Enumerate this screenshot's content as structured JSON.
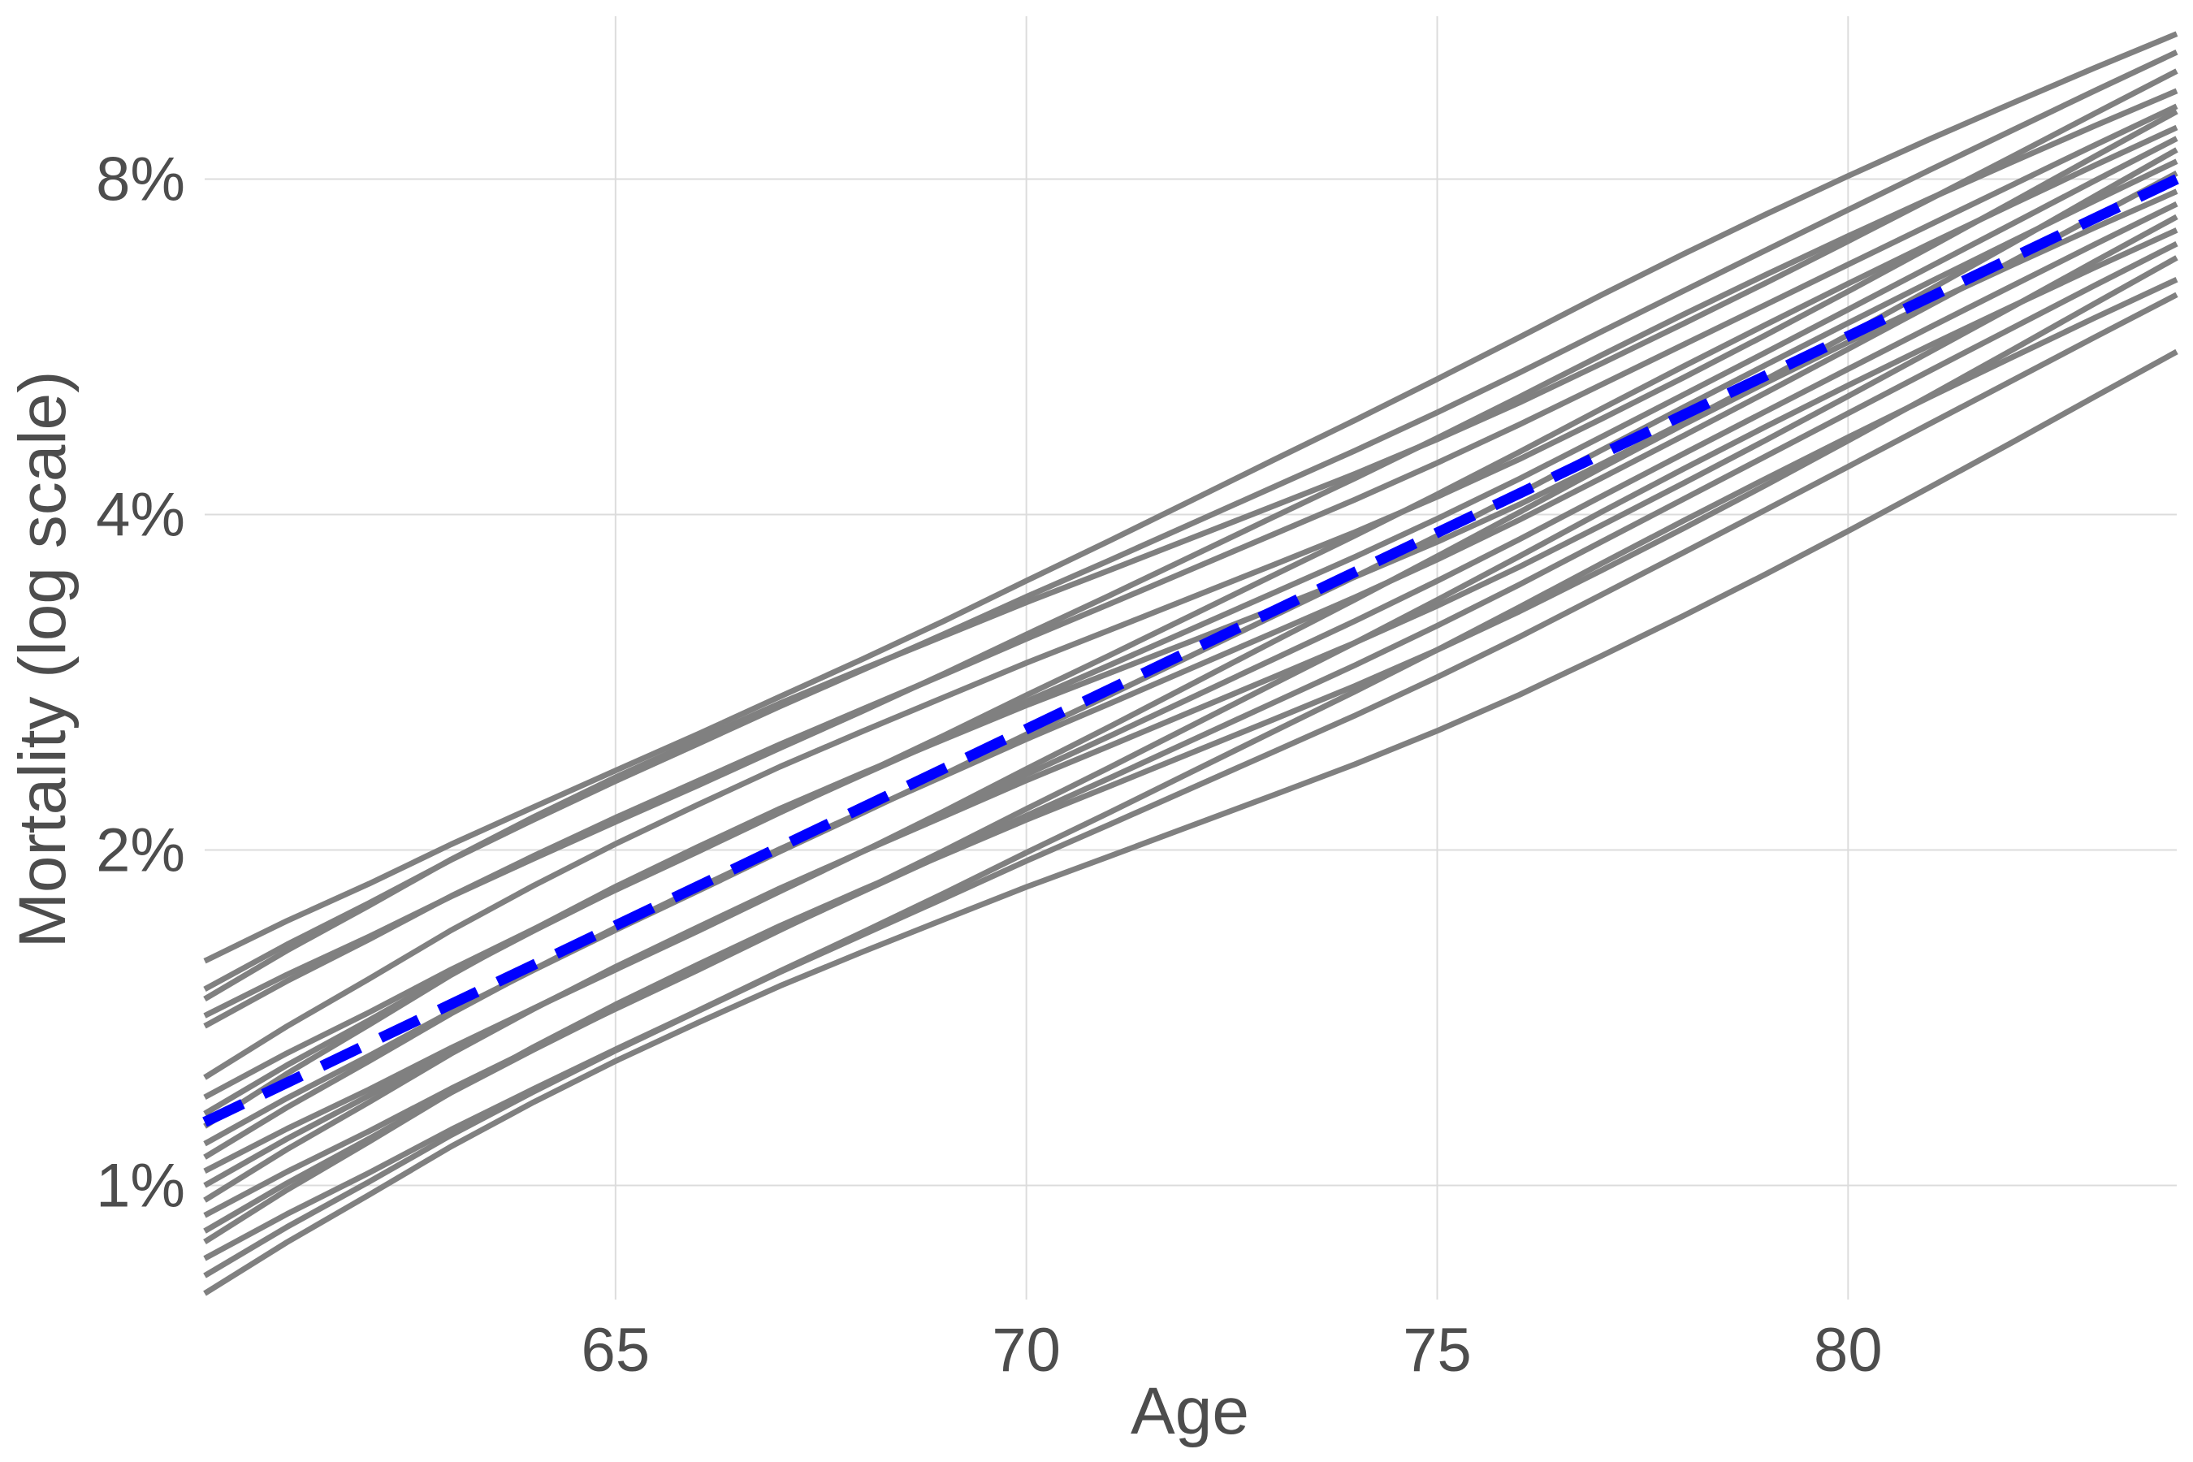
{
  "chart_data": {
    "type": "line",
    "title": "",
    "xlabel": "Age",
    "ylabel": "Mortality (log scale)",
    "xlim": [
      60,
      84
    ],
    "ylim": [
      0.0079,
      0.112
    ],
    "y_scale": "log2",
    "grid": true,
    "legend": "none",
    "x_ticks": [
      {
        "value": 65,
        "label": "65"
      },
      {
        "value": 70,
        "label": "70"
      },
      {
        "value": 75,
        "label": "75"
      },
      {
        "value": 80,
        "label": "80"
      }
    ],
    "y_ticks": [
      {
        "value": 0.01,
        "label": "1%"
      },
      {
        "value": 0.02,
        "label": "2%"
      },
      {
        "value": 0.04,
        "label": "4%"
      },
      {
        "value": 0.08,
        "label": "8%"
      }
    ],
    "colors": {
      "individual_series": "#808080",
      "average_series": "#0000ff",
      "grid": "#dcdcdc",
      "text": "#4d4d4d"
    },
    "x": [
      60,
      61,
      62,
      63,
      64,
      65,
      66,
      67,
      68,
      69,
      70,
      71,
      72,
      73,
      74,
      75,
      76,
      77,
      78,
      79,
      80,
      81,
      82,
      83,
      84
    ],
    "series": [
      {
        "style": "solid",
        "start": 0.0159,
        "end": 0.108
      },
      {
        "style": "solid",
        "start": 0.015,
        "end": 0.104
      },
      {
        "style": "solid",
        "start": 0.0147,
        "end": 0.1
      },
      {
        "style": "solid",
        "start": 0.0142,
        "end": 0.096
      },
      {
        "style": "solid",
        "start": 0.0139,
        "end": 0.093
      },
      {
        "style": "solid",
        "start": 0.0125,
        "end": 0.092
      },
      {
        "style": "solid",
        "start": 0.012,
        "end": 0.089
      },
      {
        "style": "solid",
        "start": 0.0116,
        "end": 0.087
      },
      {
        "style": "solid",
        "start": 0.0113,
        "end": 0.085
      },
      {
        "style": "solid",
        "start": 0.0109,
        "end": 0.083
      },
      {
        "style": "solid",
        "start": 0.0106,
        "end": 0.081
      },
      {
        "style": "solid",
        "start": 0.0103,
        "end": 0.078
      },
      {
        "style": "solid",
        "start": 0.01,
        "end": 0.076
      },
      {
        "style": "solid",
        "start": 0.0097,
        "end": 0.074
      },
      {
        "style": "solid",
        "start": 0.0094,
        "end": 0.072
      },
      {
        "style": "solid",
        "start": 0.0091,
        "end": 0.07
      },
      {
        "style": "solid",
        "start": 0.0089,
        "end": 0.068
      },
      {
        "style": "solid",
        "start": 0.0086,
        "end": 0.065
      },
      {
        "style": "solid",
        "start": 0.0083,
        "end": 0.063
      },
      {
        "style": "solid",
        "start": 0.008,
        "end": 0.056
      },
      {
        "style": "dashed",
        "start": 0.0114,
        "end": 0.08
      }
    ]
  }
}
